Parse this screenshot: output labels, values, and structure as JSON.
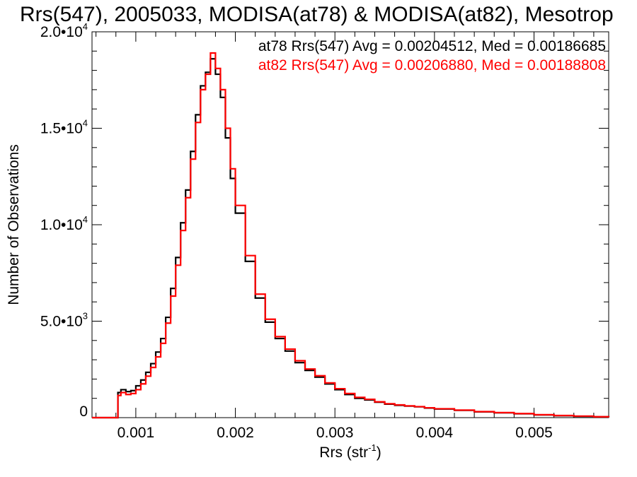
{
  "chart_data": {
    "type": "line",
    "title": "Rrs(547), 2005033, MODISA(at78) & MODISA(at82), Mesotrop",
    "xlabel": "Rrs (str",
    "xlabel_sup": "-1",
    "xlabel_close": ")",
    "ylabel": "Number of Observations",
    "xlim": [
      0.00056,
      0.00575
    ],
    "ylim": [
      0,
      20000
    ],
    "xticks": [
      {
        "value": 0.001,
        "label": "0.001"
      },
      {
        "value": 0.002,
        "label": "0.002"
      },
      {
        "value": 0.003,
        "label": "0.003"
      },
      {
        "value": 0.004,
        "label": "0.004"
      },
      {
        "value": 0.005,
        "label": "0.005"
      }
    ],
    "yticks": [
      {
        "value": 0,
        "label": "0",
        "sup": ""
      },
      {
        "value": 5000,
        "label": "5.0•10",
        "sup": "3"
      },
      {
        "value": 10000,
        "label": "1.0•10",
        "sup": "4"
      },
      {
        "value": 15000,
        "label": "1.5•10",
        "sup": "4"
      },
      {
        "value": 20000,
        "label": "2.0•10",
        "sup": "4"
      }
    ],
    "grid": false,
    "step": true,
    "series": [
      {
        "name": "at78",
        "color": "#000000",
        "annotation": "at78 Rrs(547) Avg = 0.00204512, Med = 0.00186685",
        "x": [
          0.00056,
          0.00075,
          0.00082,
          0.00085,
          0.0009,
          0.00095,
          0.001,
          0.00105,
          0.0011,
          0.00115,
          0.0012,
          0.00125,
          0.0013,
          0.00135,
          0.0014,
          0.00145,
          0.0015,
          0.00155,
          0.0016,
          0.00165,
          0.0017,
          0.00175,
          0.0018,
          0.00185,
          0.0019,
          0.00195,
          0.002,
          0.0021,
          0.0022,
          0.0023,
          0.0024,
          0.0025,
          0.0026,
          0.0027,
          0.0028,
          0.0029,
          0.003,
          0.0031,
          0.0032,
          0.0033,
          0.0034,
          0.0035,
          0.0036,
          0.0037,
          0.0038,
          0.0039,
          0.004,
          0.0042,
          0.0044,
          0.0046,
          0.0048,
          0.005,
          0.0052,
          0.0054,
          0.0056,
          0.00575
        ],
        "y": [
          0,
          0,
          1300,
          1450,
          1350,
          1400,
          1650,
          1950,
          2350,
          2800,
          3400,
          4100,
          5200,
          6700,
          8300,
          10100,
          11800,
          13800,
          15700,
          17200,
          17900,
          18600,
          17800,
          16600,
          14500,
          12400,
          10600,
          8100,
          6200,
          4950,
          4100,
          3450,
          2850,
          2450,
          2100,
          1750,
          1450,
          1200,
          1000,
          920,
          800,
          700,
          640,
          600,
          560,
          500,
          450,
          380,
          300,
          250,
          200,
          140,
          100,
          70,
          40,
          20
        ]
      },
      {
        "name": "at82",
        "color": "#ff0000",
        "annotation": "at82 Rrs(547) Avg = 0.00206880, Med = 0.00188808",
        "x": [
          0.00056,
          0.00075,
          0.00082,
          0.00085,
          0.0009,
          0.00095,
          0.001,
          0.00105,
          0.0011,
          0.00115,
          0.0012,
          0.00125,
          0.0013,
          0.00135,
          0.0014,
          0.00145,
          0.0015,
          0.00155,
          0.0016,
          0.00165,
          0.0017,
          0.00175,
          0.0018,
          0.00185,
          0.0019,
          0.00195,
          0.002,
          0.0021,
          0.0022,
          0.0023,
          0.0024,
          0.0025,
          0.0026,
          0.0027,
          0.0028,
          0.0029,
          0.003,
          0.0031,
          0.0032,
          0.0033,
          0.0034,
          0.0035,
          0.0036,
          0.0037,
          0.0038,
          0.0039,
          0.004,
          0.0042,
          0.0044,
          0.0046,
          0.0048,
          0.005,
          0.0052,
          0.0054,
          0.0056,
          0.00575
        ],
        "y": [
          0,
          0,
          1150,
          1300,
          1200,
          1250,
          1450,
          1750,
          2150,
          2600,
          3150,
          3850,
          4900,
          6300,
          7900,
          9700,
          11400,
          13400,
          15300,
          17000,
          17800,
          18900,
          18100,
          17000,
          15000,
          12900,
          11000,
          8400,
          6400,
          5100,
          4200,
          3550,
          2950,
          2520,
          2170,
          1800,
          1500,
          1250,
          1050,
          950,
          820,
          720,
          660,
          610,
          570,
          510,
          460,
          390,
          310,
          260,
          210,
          150,
          110,
          80,
          45,
          25
        ]
      }
    ]
  }
}
